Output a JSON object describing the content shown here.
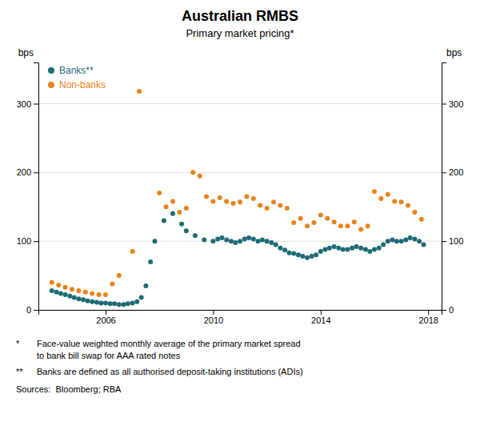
{
  "chart_data": {
    "type": "scatter",
    "title": "Australian RMBS",
    "subtitle": "Primary market pricing*",
    "ylabel": "bps",
    "y2label": "bps",
    "xlim": [
      2003.5,
      2018.5
    ],
    "xticks": [
      2006,
      2010,
      2014,
      2018
    ],
    "ylim": [
      0,
      360
    ],
    "yticks": [
      0,
      100,
      200,
      300
    ],
    "y2lim": [
      0,
      360
    ],
    "y2ticks": [
      0,
      100,
      200,
      300
    ],
    "grid": true,
    "legend": "upper left",
    "series": [
      {
        "name": "Banks**",
        "color": "#1d6b75",
        "x": [
          2004.0,
          2004.17,
          2004.33,
          2004.5,
          2004.67,
          2004.83,
          2005.0,
          2005.17,
          2005.33,
          2005.5,
          2005.67,
          2005.83,
          2006.0,
          2006.17,
          2006.33,
          2006.5,
          2006.67,
          2006.83,
          2007.0,
          2007.17,
          2007.33,
          2007.5,
          2007.67,
          2007.83,
          2008.17,
          2008.5,
          2008.83,
          2009.0,
          2009.33,
          2009.67,
          2010.0,
          2010.17,
          2010.33,
          2010.5,
          2010.67,
          2010.83,
          2011.0,
          2011.17,
          2011.33,
          2011.5,
          2011.67,
          2011.83,
          2012.0,
          2012.17,
          2012.33,
          2012.5,
          2012.67,
          2012.83,
          2013.0,
          2013.17,
          2013.33,
          2013.5,
          2013.67,
          2013.83,
          2014.0,
          2014.17,
          2014.33,
          2014.5,
          2014.67,
          2014.83,
          2015.0,
          2015.17,
          2015.33,
          2015.5,
          2015.67,
          2015.83,
          2016.0,
          2016.17,
          2016.33,
          2016.5,
          2016.67,
          2016.83,
          2017.0,
          2017.17,
          2017.33,
          2017.5,
          2017.67,
          2017.83
        ],
        "values": [
          28,
          26,
          24,
          22,
          20,
          18,
          16,
          15,
          13,
          12,
          11,
          10,
          10,
          9,
          9,
          8,
          8,
          9,
          10,
          12,
          18,
          35,
          70,
          100,
          130,
          140,
          125,
          115,
          108,
          102,
          100,
          103,
          105,
          102,
          100,
          98,
          100,
          103,
          105,
          103,
          100,
          102,
          100,
          98,
          95,
          90,
          87,
          83,
          82,
          80,
          78,
          76,
          78,
          80,
          85,
          88,
          90,
          92,
          90,
          88,
          88,
          90,
          92,
          90,
          88,
          85,
          88,
          90,
          95,
          100,
          102,
          100,
          100,
          102,
          105,
          103,
          100,
          95
        ]
      },
      {
        "name": "Non-banks",
        "color": "#e8821a",
        "x": [
          2004.0,
          2004.25,
          2004.5,
          2004.75,
          2005.0,
          2005.25,
          2005.5,
          2005.75,
          2006.0,
          2006.25,
          2006.5,
          2007.0,
          2007.25,
          2008.0,
          2008.25,
          2008.5,
          2008.75,
          2009.0,
          2009.25,
          2009.5,
          2009.75,
          2010.0,
          2010.25,
          2010.5,
          2010.75,
          2011.0,
          2011.25,
          2011.5,
          2011.75,
          2012.0,
          2012.25,
          2012.5,
          2012.75,
          2013.0,
          2013.25,
          2013.5,
          2013.75,
          2014.0,
          2014.25,
          2014.5,
          2014.75,
          2015.0,
          2015.25,
          2015.5,
          2015.75,
          2016.0,
          2016.25,
          2016.5,
          2016.75,
          2017.0,
          2017.25,
          2017.5,
          2017.75
        ],
        "values": [
          40,
          36,
          33,
          30,
          28,
          26,
          24,
          22,
          22,
          38,
          50,
          85,
          318,
          170,
          150,
          158,
          142,
          148,
          200,
          195,
          165,
          158,
          163,
          158,
          155,
          157,
          165,
          162,
          152,
          148,
          157,
          152,
          148,
          127,
          133,
          122,
          127,
          138,
          133,
          128,
          122,
          122,
          128,
          117,
          122,
          172,
          162,
          168,
          158,
          157,
          152,
          142,
          132
        ]
      }
    ],
    "footnotes": [
      {
        "marker": "*",
        "lines": [
          "Face-value weighted monthly average of the primary market spread",
          "to bank bill swap for AAA rated notes"
        ]
      },
      {
        "marker": "**",
        "lines": [
          "Banks are defined as all authorised deposit-taking institutions (ADIs)"
        ]
      }
    ],
    "source": "Sources:  Bloomberg; RBA"
  }
}
